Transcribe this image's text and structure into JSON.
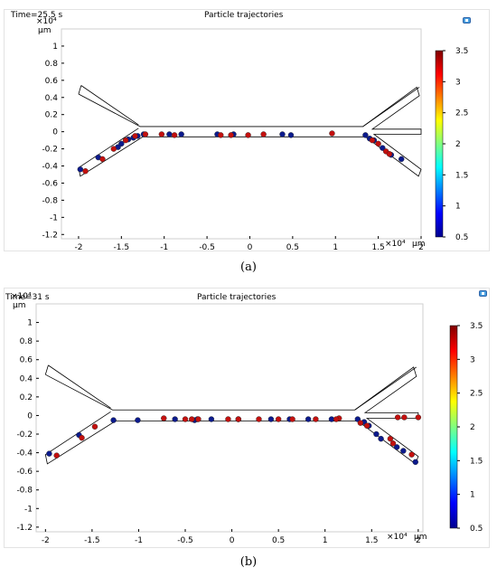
{
  "colorbar": {
    "min": 0.5,
    "max": 3.5,
    "ticks": [
      "3.5",
      "3",
      "2.5",
      "2",
      "1.5",
      "1",
      "0.5"
    ],
    "colors": [
      "#00008f",
      "#0000ff",
      "#0080ff",
      "#00ffff",
      "#80ff80",
      "#ffff00",
      "#ff8000",
      "#ff0000",
      "#800000"
    ]
  },
  "colors": {
    "blue": "#0b1a8c",
    "red": "#c3100e",
    "channel": "#000000"
  },
  "axes": {
    "x_ticks": [
      "-2",
      "-1.5",
      "-1",
      "-0.5",
      "0",
      "0.5",
      "1",
      "1.5",
      "2"
    ],
    "y_ticks": [
      "1",
      "0.8",
      "0.6",
      "0.4",
      "0.2",
      "0",
      "-0.2",
      "-0.4",
      "-0.6",
      "-0.8",
      "-1",
      "-1.2"
    ],
    "x_exp": "×10⁴",
    "x_unit": "μm",
    "y_exp": "×10⁴",
    "y_unit": "μm",
    "xlim": [
      -2.2,
      2.0
    ],
    "ylim": [
      -1.25,
      1.2
    ]
  },
  "chart_data": [
    {
      "type": "scatter",
      "panel_label": "(a)",
      "title": "Particle trajectories",
      "time_label": "Time=25.5 s",
      "xlim": [
        -2.2,
        2.0
      ],
      "ylim": [
        -1.25,
        1.2
      ],
      "xlabel": "μm",
      "ylabel": "μm",
      "series": [
        {
          "color": "blue",
          "x": [
            -1.98,
            -1.77,
            -1.54,
            -1.5,
            -1.42,
            -1.36,
            -1.31,
            -1.24,
            -0.94,
            -0.8,
            -0.38,
            -0.19,
            0.38,
            0.48,
            1.35,
            1.4,
            1.45,
            1.55,
            1.65,
            1.77
          ],
          "y": [
            -0.44,
            -0.3,
            -0.18,
            -0.14,
            -0.09,
            -0.07,
            -0.05,
            -0.03,
            -0.03,
            -0.03,
            -0.03,
            -0.03,
            -0.03,
            -0.04,
            -0.04,
            -0.08,
            -0.1,
            -0.19,
            -0.27,
            -0.32
          ]
        },
        {
          "color": "red",
          "x": [
            -1.92,
            -1.72,
            -1.59,
            -1.45,
            -1.34,
            -1.22,
            -1.03,
            -0.88,
            -0.34,
            -0.22,
            -0.02,
            0.16,
            0.96,
            1.43,
            1.5,
            1.59,
            1.63
          ],
          "y": [
            -0.46,
            -0.32,
            -0.2,
            -0.1,
            -0.05,
            -0.03,
            -0.03,
            -0.04,
            -0.04,
            -0.04,
            -0.04,
            -0.03,
            -0.02,
            -0.1,
            -0.14,
            -0.23,
            -0.26
          ]
        }
      ]
    },
    {
      "type": "scatter",
      "panel_label": "(b)",
      "title": "Particle trajectories",
      "time_label": "Time=31 s",
      "xlim": [
        -2.1,
        2.05
      ],
      "ylim": [
        -1.25,
        1.2
      ],
      "xlabel": "μm",
      "ylabel": "μm",
      "series": [
        {
          "color": "blue",
          "x": [
            -1.96,
            -1.64,
            -1.27,
            -1.01,
            -0.61,
            -0.4,
            -0.37,
            -0.22,
            0.07,
            0.42,
            0.62,
            0.82,
            1.07,
            1.35,
            1.42,
            1.47,
            1.55,
            1.6,
            1.77,
            1.84,
            1.97
          ],
          "y": [
            -0.41,
            -0.21,
            -0.05,
            -0.05,
            -0.04,
            -0.05,
            -0.04,
            -0.04,
            -0.04,
            -0.04,
            -0.04,
            -0.04,
            -0.04,
            -0.04,
            -0.07,
            -0.11,
            -0.2,
            -0.25,
            -0.34,
            -0.38,
            -0.5
          ]
        },
        {
          "color": "red",
          "x": [
            -1.88,
            -1.61,
            -1.47,
            -0.73,
            -0.5,
            -0.43,
            -0.36,
            -0.04,
            0.07,
            0.29,
            0.5,
            0.65,
            0.9,
            1.15,
            1.12,
            1.38,
            1.45,
            1.7,
            1.73,
            1.78,
            1.85,
            1.93,
            2.0
          ],
          "y": [
            -0.43,
            -0.24,
            -0.12,
            -0.03,
            -0.04,
            -0.04,
            -0.04,
            -0.04,
            -0.04,
            -0.04,
            -0.04,
            -0.04,
            -0.04,
            -0.03,
            -0.04,
            -0.08,
            -0.11,
            -0.25,
            -0.3,
            -0.02,
            -0.02,
            -0.42,
            -0.02
          ]
        }
      ]
    }
  ]
}
